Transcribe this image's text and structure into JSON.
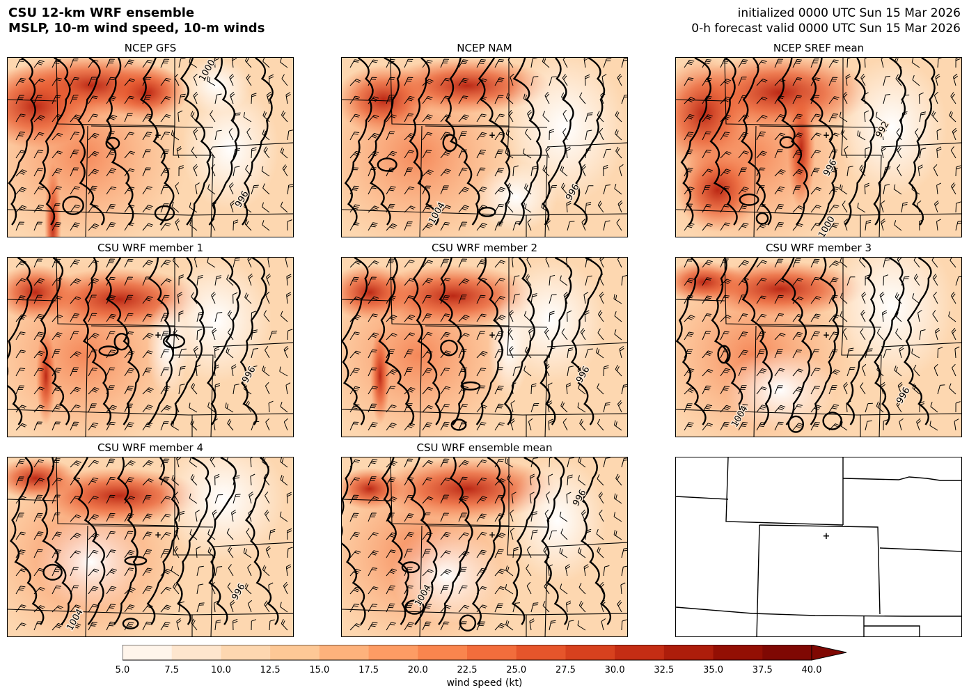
{
  "header": {
    "title_line1": "CSU 12-km WRF ensemble",
    "title_line2": "MSLP, 10-m wind speed, 10-m winds",
    "init_line": "initialized 0000 UTC Sun 15 Mar 2026",
    "valid_line": "0-h forecast valid 0000 UTC Sun 15 Mar 2026"
  },
  "panels": [
    {
      "title": "NCEP GFS",
      "labels": [
        "1000",
        "996"
      ]
    },
    {
      "title": "NCEP NAM",
      "labels": [
        "1004",
        "996"
      ]
    },
    {
      "title": "NCEP SREF mean",
      "labels": [
        "992",
        "996",
        "1000"
      ]
    },
    {
      "title": "CSU WRF member 1",
      "labels": [
        "996"
      ]
    },
    {
      "title": "CSU WRF member 2",
      "labels": [
        "996"
      ]
    },
    {
      "title": "CSU WRF member 3",
      "labels": [
        "1004",
        "996"
      ]
    },
    {
      "title": "CSU WRF member 4",
      "labels": [
        "1004",
        "996"
      ]
    },
    {
      "title": "CSU WRF ensemble mean",
      "labels": [
        "1004",
        "996"
      ]
    }
  ],
  "colorbar": {
    "label": "wind speed (kt)",
    "ticks": [
      "5.0",
      "7.5",
      "10.0",
      "12.5",
      "15.0",
      "17.5",
      "20.0",
      "22.5",
      "25.0",
      "27.5",
      "30.0",
      "32.5",
      "35.0",
      "37.5",
      "40.0"
    ],
    "colors": [
      "#fff5eb",
      "#fee6ce",
      "#fdd7b0",
      "#fdc896",
      "#fdb27c",
      "#fd9c64",
      "#f9854e",
      "#f26d3c",
      "#e6552b",
      "#d7411e",
      "#c42d14",
      "#ad1d0b",
      "#930f04",
      "#7f0803"
    ]
  }
}
